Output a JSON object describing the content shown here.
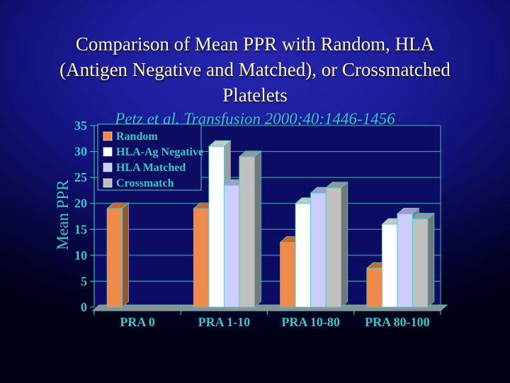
{
  "slide": {
    "title_lines": [
      "Comparison of Mean PPR with Random, HLA",
      "(Antigen Negative and Matched), or Crossmatched",
      "Platelets"
    ],
    "subtitle": "Petz et al. Transfusion 2000;40:1446-1456"
  },
  "chart_data": {
    "type": "bar",
    "is_3d": true,
    "title": "",
    "xlabel": "",
    "ylabel": "Mean PPR",
    "ylim": [
      0,
      35
    ],
    "yticks": [
      0,
      5,
      10,
      15,
      20,
      25,
      30,
      35
    ],
    "grid": true,
    "legend_position": "top-left",
    "categories": [
      "PRA 0",
      "PRA 1-10",
      "PRA 10-80",
      "PRA 80-100"
    ],
    "series": [
      {
        "name": "Random",
        "color": "#F08A4C",
        "values": [
          19,
          19,
          12.5,
          7.5
        ]
      },
      {
        "name": "HLA-Ag Negative",
        "color": "#FFFFFF",
        "values": [
          null,
          31,
          20,
          16
        ]
      },
      {
        "name": "HLA Matched",
        "color": "#CCCCFF",
        "values": [
          null,
          23.5,
          22,
          18
        ]
      },
      {
        "name": "Crossmatch",
        "color": "#C0C0C0",
        "values": [
          null,
          29,
          23,
          17
        ]
      }
    ],
    "colors": {
      "axis_text": "#38C6C6",
      "gridline": "#38B8B8",
      "outline": "#45CCCC",
      "plot_background": "#0C0C64",
      "legend_background": "#0C0C62",
      "floor": "#8E8E8E",
      "title_text": "#FBF3C2",
      "subtitle_text": "#2EC8DC"
    }
  }
}
